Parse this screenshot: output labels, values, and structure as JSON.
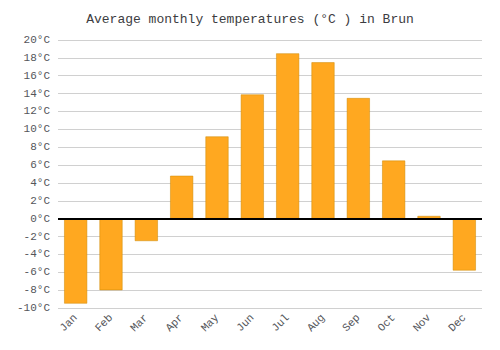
{
  "chart_data": {
    "type": "bar",
    "title": "Average monthly temperatures (°C ) in Brun",
    "categories": [
      "Jan",
      "Feb",
      "Mar",
      "Apr",
      "May",
      "Jun",
      "Jul",
      "Aug",
      "Sep",
      "Oct",
      "Nov",
      "Dec"
    ],
    "values": [
      -9.5,
      -8.0,
      -2.5,
      4.8,
      9.2,
      13.9,
      18.5,
      17.5,
      13.5,
      6.5,
      0.3,
      -5.8
    ],
    "color": "#FFA820",
    "ylim": [
      -10,
      20
    ],
    "yticks": [
      {
        "value": -10,
        "label": "-10°C"
      },
      {
        "value": -8,
        "label": "-8°C"
      },
      {
        "value": -6,
        "label": "-6°C"
      },
      {
        "value": -4,
        "label": "-4°C"
      },
      {
        "value": -2,
        "label": "-2°C"
      },
      {
        "value": 0,
        "label": "0°C"
      },
      {
        "value": 2,
        "label": "2°C"
      },
      {
        "value": 4,
        "label": "4°C"
      },
      {
        "value": 6,
        "label": "6°C"
      },
      {
        "value": 8,
        "label": "8°C"
      },
      {
        "value": 10,
        "label": "10°C"
      },
      {
        "value": 12,
        "label": "12°C"
      },
      {
        "value": 14,
        "label": "14°C"
      },
      {
        "value": 16,
        "label": "16°C"
      },
      {
        "value": 18,
        "label": "18°C"
      },
      {
        "value": 20,
        "label": "20°C"
      }
    ],
    "grid": true
  }
}
